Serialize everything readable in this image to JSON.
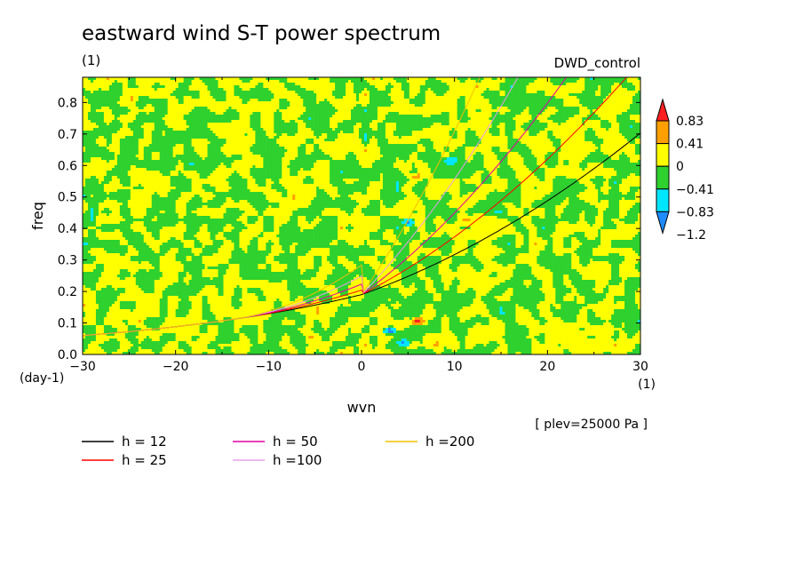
{
  "chart_data": {
    "type": "heatmap",
    "title": "eastward wind S-T power spectrum",
    "title_units": "(1)",
    "experiment": "DWD_control",
    "xlabel": "wvn",
    "x_units": "(1)",
    "ylabel": "freq",
    "y_units": "(day-1)",
    "xlim": [
      -30,
      30
    ],
    "ylim": [
      0,
      0.88
    ],
    "x_ticks": [
      -30,
      -20,
      -10,
      0,
      10,
      20,
      30
    ],
    "x_tick_labels": [
      "−30",
      "−20",
      "−10",
      "0",
      "10",
      "20",
      "30"
    ],
    "y_ticks": [
      0,
      0.1,
      0.2,
      0.3,
      0.4,
      0.5,
      0.6,
      0.7,
      0.8
    ],
    "y_tick_labels": [
      "0.0",
      "0.1",
      "0.2",
      "0.3",
      "0.4",
      "0.5",
      "0.6",
      "0.7",
      "0.8"
    ],
    "level_note": "[ plev=25000 Pa ]",
    "colorbar": {
      "levels": [
        -1.2,
        -0.83,
        -0.41,
        0,
        0.41,
        0.83
      ],
      "level_labels": [
        "−1.2",
        "−0.83",
        "−0.41",
        "0",
        "0.41",
        "0.83"
      ],
      "colors": [
        "#1e8cff",
        "#00e6ff",
        "#2ed12e",
        "#ffff00",
        "#ffa000",
        "#ff2020"
      ]
    },
    "field_description": "noisy field mostly between -0.41 and 0.41 with isolated extrema",
    "hot_spots": [
      {
        "wvn": 6,
        "freq": 0.105,
        "value": 0.9
      },
      {
        "wvn": 6,
        "freq": 0.565,
        "value": 0.5
      },
      {
        "wvn": 5,
        "freq": 0.42,
        "value": -0.9
      },
      {
        "wvn": 3,
        "freq": 0.075,
        "value": -1.0
      },
      {
        "wvn": 4.5,
        "freq": 0.035,
        "value": -0.9
      },
      {
        "wvn": 9.5,
        "freq": 0.615,
        "value": -0.7
      }
    ],
    "series": [
      {
        "name": "h = 12",
        "h": 12,
        "color": "#000000"
      },
      {
        "name": "h = 25",
        "h": 25,
        "color": "#ff0000"
      },
      {
        "name": "h = 50",
        "h": 50,
        "color": "#e000a0"
      },
      {
        "name": "h =100",
        "h": 100,
        "color": "#e6a0e6"
      },
      {
        "name": "h =200",
        "h": 200,
        "color": "#f0c000"
      }
    ]
  }
}
